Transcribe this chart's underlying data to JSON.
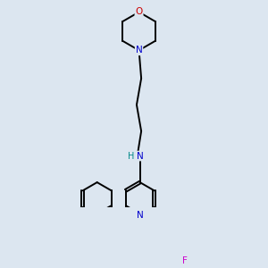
{
  "background_color": "#dce6f0",
  "bond_color": "#000000",
  "bond_lw": 1.4,
  "atom_colors": {
    "N": "#0000cc",
    "O": "#cc0000",
    "F": "#cc00cc",
    "H": "#008888"
  },
  "fontsize": 7.5
}
